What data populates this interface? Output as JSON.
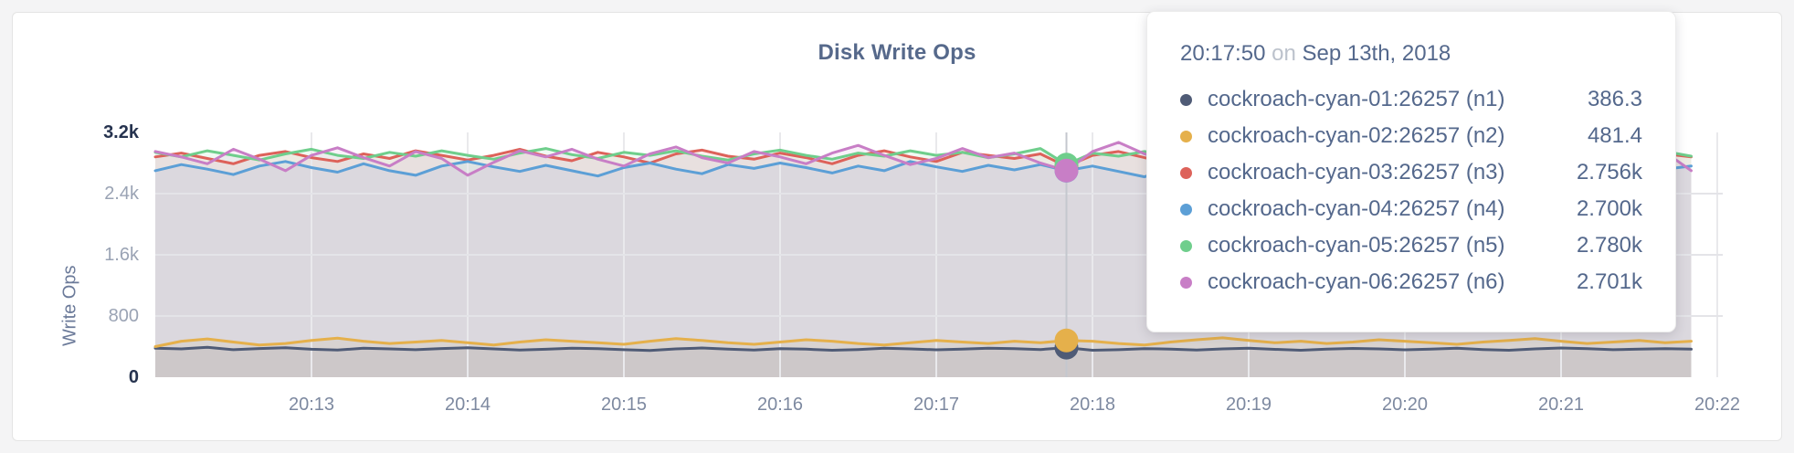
{
  "chart": {
    "title": "Disk Write Ops"
  },
  "tooltip": {
    "time": "20:17:50",
    "connector": "on",
    "date": "Sep 13th, 2018",
    "rows": [
      {
        "label": "cockroach-cyan-01:26257 (n1)",
        "value": "386.3"
      },
      {
        "label": "cockroach-cyan-02:26257 (n2)",
        "value": "481.4"
      },
      {
        "label": "cockroach-cyan-03:26257 (n3)",
        "value": "2.756k"
      },
      {
        "label": "cockroach-cyan-04:26257 (n4)",
        "value": "2.700k"
      },
      {
        "label": "cockroach-cyan-05:26257 (n5)",
        "value": "2.780k"
      },
      {
        "label": "cockroach-cyan-06:26257 (n6)",
        "value": "2.701k"
      }
    ]
  },
  "chart_data": {
    "type": "line",
    "title": "Disk Write Ops",
    "xlabel": "",
    "ylabel": "Write Ops",
    "ylim": [
      0,
      3200
    ],
    "grid": true,
    "legend_position": "tooltip",
    "y_ticks": [
      {
        "label": "3.2k",
        "value": 3200,
        "emph": true
      },
      {
        "label": "2.4k",
        "value": 2400,
        "emph": false
      },
      {
        "label": "1.6k",
        "value": 1600,
        "emph": false
      },
      {
        "label": "800",
        "value": 800,
        "emph": false
      },
      {
        "label": "0",
        "value": 0,
        "emph": true
      }
    ],
    "x_ticks": [
      "20:13",
      "20:14",
      "20:15",
      "20:16",
      "20:17",
      "20:18",
      "20:19",
      "20:20",
      "20:21",
      "20:22"
    ],
    "start_time": "20:12:00",
    "interval_seconds": 10,
    "hover_index": 35,
    "hover_time": "20:17:50",
    "series": [
      {
        "name": "cockroach-cyan-01:26257 (n1)",
        "color": "#4F5B76",
        "values": [
          380,
          370,
          390,
          360,
          375,
          385,
          365,
          355,
          380,
          370,
          360,
          375,
          385,
          370,
          355,
          365,
          380,
          372,
          360,
          350,
          370,
          382,
          368,
          356,
          374,
          366,
          352,
          362,
          378,
          370,
          358,
          368,
          380,
          372,
          362,
          386.3,
          352,
          360,
          374,
          368,
          356,
          370,
          380,
          364,
          352,
          366,
          376,
          370,
          358,
          368,
          378,
          362,
          352,
          370,
          382,
          372,
          360,
          368,
          374,
          366
        ]
      },
      {
        "name": "cockroach-cyan-02:26257 (n2)",
        "color": "#E5B04B",
        "values": [
          400,
          470,
          500,
          460,
          420,
          440,
          480,
          510,
          470,
          440,
          460,
          480,
          450,
          420,
          460,
          490,
          470,
          450,
          430,
          470,
          505,
          480,
          450,
          430,
          460,
          490,
          470,
          440,
          420,
          450,
          480,
          460,
          440,
          470,
          450,
          481.4,
          470,
          440,
          420,
          460,
          490,
          515,
          480,
          450,
          470,
          440,
          460,
          490,
          470,
          450,
          430,
          460,
          480,
          505,
          470,
          440,
          460,
          480,
          450,
          470
        ]
      },
      {
        "name": "cockroach-cyan-03:26257 (n3)",
        "color": "#DD625A",
        "values": [
          2880,
          2930,
          2860,
          2790,
          2900,
          2950,
          2870,
          2820,
          2920,
          2860,
          2960,
          2900,
          2840,
          2900,
          2980,
          2890,
          2830,
          2940,
          2880,
          2800,
          2920,
          2970,
          2890,
          2850,
          2930,
          2870,
          2790,
          2900,
          2960,
          2880,
          2820,
          2940,
          2900,
          2860,
          2920,
          2756,
          2900,
          2950,
          2870,
          2810,
          3010,
          2930,
          2870,
          2920,
          2850,
          2900,
          2960,
          2880,
          2840,
          2930,
          2890,
          2950,
          2870,
          2900,
          2820,
          2960,
          2910,
          2850,
          2920,
          2880
        ]
      },
      {
        "name": "cockroach-cyan-04:26257 (n4)",
        "color": "#5C9FD6",
        "values": [
          2700,
          2780,
          2720,
          2650,
          2760,
          2820,
          2740,
          2680,
          2790,
          2700,
          2640,
          2760,
          2820,
          2750,
          2690,
          2770,
          2700,
          2630,
          2740,
          2800,
          2720,
          2660,
          2780,
          2730,
          2800,
          2740,
          2670,
          2760,
          2700,
          2820,
          2750,
          2690,
          2770,
          2710,
          2780,
          2700,
          2760,
          2690,
          2620,
          2740,
          2800,
          2730,
          2670,
          2760,
          2820,
          2740,
          2700,
          2780,
          2720,
          2660,
          2750,
          2810,
          2730,
          2690,
          2770,
          2700,
          2740,
          2800,
          2720,
          2760
        ]
      },
      {
        "name": "cockroach-cyan-05:26257 (n5)",
        "color": "#6FCE8C",
        "values": [
          2940,
          2880,
          2960,
          2900,
          2840,
          2920,
          2980,
          2900,
          2860,
          2940,
          2890,
          2960,
          2900,
          2850,
          2930,
          2990,
          2910,
          2860,
          2940,
          2900,
          2960,
          2890,
          2840,
          2920,
          2970,
          2900,
          2850,
          2930,
          2890,
          2960,
          2900,
          2940,
          2870,
          2920,
          2990,
          2780,
          2930,
          2890,
          2950,
          2900,
          2860,
          2930,
          2970,
          2900,
          2850,
          2920,
          2880,
          2950,
          2900,
          2940,
          2870,
          2930,
          2890,
          2960,
          2910,
          2860,
          2930,
          2900,
          2950,
          2890
        ]
      },
      {
        "name": "cockroach-cyan-06:26257 (n6)",
        "color": "#C87EC6",
        "values": [
          2950,
          2880,
          2790,
          2980,
          2850,
          2700,
          2900,
          3000,
          2870,
          2760,
          2950,
          2860,
          2640,
          2810,
          2960,
          2880,
          2980,
          2850,
          2760,
          2920,
          3010,
          2870,
          2800,
          2950,
          2880,
          2790,
          2930,
          3030,
          2900,
          2780,
          2860,
          2990,
          2870,
          2930,
          2800,
          2701,
          2950,
          3070,
          2920,
          2790,
          2870,
          2960,
          2890,
          2730,
          2950,
          2880,
          2960,
          2870,
          2800,
          2930,
          2990,
          2860,
          2780,
          2920,
          2870,
          2950,
          2890,
          2820,
          2940,
          2700
        ]
      }
    ]
  }
}
